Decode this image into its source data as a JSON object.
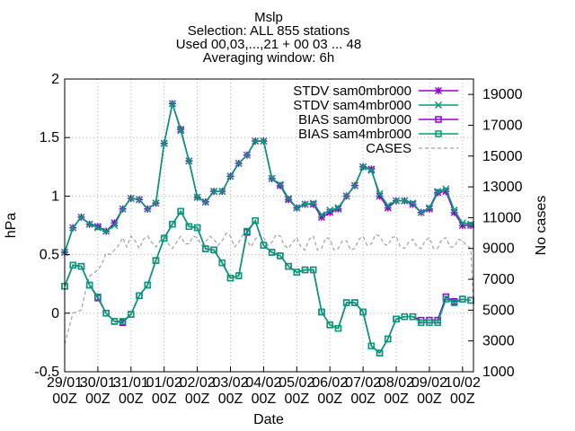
{
  "chart_data": {
    "type": "line",
    "title_lines": [
      "Mslp",
      "Selection: ALL    855 stations",
      "Used 00,03,...,21 + 00 03 ... 48",
      "Averaging window:  6h"
    ],
    "xlabel": "Date",
    "ylabel": "hPa",
    "y2label": "No cases",
    "ylim": [
      -0.5,
      2
    ],
    "y2lim": [
      1000,
      20000
    ],
    "xlim": [
      0,
      12.33
    ],
    "yticks": [
      "-0.5",
      "0",
      "0.5",
      "1",
      "1.5",
      "2"
    ],
    "y2ticks": [
      "1000",
      "3000",
      "5000",
      "7000",
      "9000",
      "11000",
      "13000",
      "15000",
      "17000",
      "19000"
    ],
    "x_ticks": [
      {
        "day": "29/01",
        "hour": "00Z"
      },
      {
        "day": "30/01",
        "hour": "00Z"
      },
      {
        "day": "31/01",
        "hour": "00Z"
      },
      {
        "day": "01/02",
        "hour": "00Z"
      },
      {
        "day": "02/02",
        "hour": "00Z"
      },
      {
        "day": "03/02",
        "hour": "00Z"
      },
      {
        "day": "04/02",
        "hour": "00Z"
      },
      {
        "day": "05/02",
        "hour": "00Z"
      },
      {
        "day": "06/02",
        "hour": "00Z"
      },
      {
        "day": "07/02",
        "hour": "00Z"
      },
      {
        "day": "08/02",
        "hour": "00Z"
      },
      {
        "day": "09/02",
        "hour": "00Z"
      },
      {
        "day": "10/02",
        "hour": "00Z"
      }
    ],
    "x_unit_note": "days",
    "series": [
      {
        "name": "STDV sam0mbr000",
        "axis": "y",
        "marker": "star",
        "color": "#9400d3",
        "x": [
          0,
          0.25,
          0.5,
          0.75,
          1,
          1.25,
          1.5,
          1.75,
          2,
          2.25,
          2.5,
          2.75,
          3,
          3.25,
          3.5,
          3.75,
          4,
          4.25,
          4.5,
          4.75,
          5,
          5.25,
          5.5,
          5.75,
          6,
          6.25,
          6.5,
          6.75,
          7,
          7.25,
          7.5,
          7.75,
          8,
          8.25,
          8.5,
          8.75,
          9,
          9.25,
          9.5,
          9.75,
          10,
          10.25,
          10.5,
          10.75,
          11,
          11.25,
          11.5,
          11.75,
          12,
          12.25
        ],
        "values": [
          0.52,
          0.73,
          0.82,
          0.76,
          0.74,
          0.7,
          0.77,
          0.89,
          0.98,
          0.97,
          0.89,
          0.94,
          1.45,
          1.79,
          1.57,
          1.3,
          0.99,
          0.95,
          1.04,
          1.04,
          1.17,
          1.28,
          1.35,
          1.47,
          1.47,
          1.15,
          1.09,
          0.97,
          0.9,
          0.93,
          0.93,
          0.82,
          0.86,
          0.89,
          1.0,
          1.09,
          1.25,
          1.23,
          1.0,
          0.9,
          0.96,
          0.96,
          0.93,
          0.86,
          0.89,
          1.03,
          1.04,
          0.86,
          0.75,
          0.75
        ]
      },
      {
        "name": "STDV sam4mbr000",
        "axis": "y",
        "marker": "x",
        "color": "#009e73",
        "x": [
          0,
          0.25,
          0.5,
          0.75,
          1,
          1.25,
          1.5,
          1.75,
          2,
          2.25,
          2.5,
          2.75,
          3,
          3.25,
          3.5,
          3.75,
          4,
          4.25,
          4.5,
          4.75,
          5,
          5.25,
          5.5,
          5.75,
          6,
          6.25,
          6.5,
          6.75,
          7,
          7.25,
          7.5,
          7.75,
          8,
          8.25,
          8.5,
          8.75,
          9,
          9.25,
          9.5,
          9.75,
          10,
          10.25,
          10.5,
          10.75,
          11,
          11.25,
          11.5,
          11.75,
          12,
          12.25
        ],
        "values": [
          0.52,
          0.73,
          0.82,
          0.76,
          0.73,
          0.7,
          0.75,
          0.89,
          0.98,
          0.97,
          0.89,
          0.94,
          1.45,
          1.79,
          1.56,
          1.3,
          0.99,
          0.95,
          1.04,
          1.04,
          1.17,
          1.28,
          1.35,
          1.47,
          1.47,
          1.15,
          1.1,
          0.98,
          0.9,
          0.93,
          0.94,
          0.84,
          0.88,
          0.9,
          1.0,
          1.09,
          1.25,
          1.22,
          1.02,
          0.92,
          0.96,
          0.96,
          0.94,
          0.86,
          0.9,
          1.04,
          1.06,
          0.88,
          0.77,
          0.76
        ]
      },
      {
        "name": "BIAS sam0mbr000",
        "axis": "y",
        "marker": "square",
        "color": "#9400d3",
        "x": [
          0,
          0.25,
          0.5,
          0.75,
          1,
          1.25,
          1.5,
          1.75,
          2,
          2.25,
          2.5,
          2.75,
          3,
          3.25,
          3.5,
          3.75,
          4,
          4.25,
          4.5,
          4.75,
          5,
          5.25,
          5.5,
          5.75,
          6,
          6.25,
          6.5,
          6.75,
          7,
          7.25,
          7.5,
          7.75,
          8,
          8.25,
          8.5,
          8.75,
          9,
          9.25,
          9.5,
          9.75,
          10,
          10.25,
          10.5,
          10.75,
          11,
          11.25,
          11.5,
          11.75,
          12,
          12.25
        ],
        "values": [
          0.23,
          0.41,
          0.4,
          0.24,
          0.13,
          0.0,
          -0.07,
          -0.08,
          -0.01,
          0.15,
          0.24,
          0.45,
          0.64,
          0.76,
          0.87,
          0.74,
          0.73,
          0.55,
          0.54,
          0.43,
          0.3,
          0.32,
          0.69,
          0.79,
          0.58,
          0.52,
          0.49,
          0.4,
          0.35,
          0.37,
          0.37,
          0.01,
          -0.1,
          -0.13,
          0.09,
          0.09,
          0.01,
          -0.28,
          -0.34,
          -0.22,
          -0.05,
          -0.03,
          -0.03,
          -0.06,
          -0.06,
          -0.06,
          0.14,
          0.1,
          0.12,
          0.11
        ]
      },
      {
        "name": "BIAS sam4mbr000",
        "axis": "y",
        "marker": "square",
        "color": "#009e73",
        "x": [
          0,
          0.25,
          0.5,
          0.75,
          1,
          1.25,
          1.5,
          1.75,
          2,
          2.25,
          2.5,
          2.75,
          3,
          3.25,
          3.5,
          3.75,
          4,
          4.25,
          4.5,
          4.75,
          5,
          5.25,
          5.5,
          5.75,
          6,
          6.25,
          6.5,
          6.75,
          7,
          7.25,
          7.5,
          7.75,
          8,
          8.25,
          8.5,
          8.75,
          9,
          9.25,
          9.5,
          9.75,
          10,
          10.25,
          10.5,
          10.75,
          11,
          11.25,
          11.5,
          11.75,
          12,
          12.25
        ],
        "values": [
          0.23,
          0.41,
          0.4,
          0.24,
          0.14,
          0.0,
          -0.07,
          -0.07,
          -0.01,
          0.15,
          0.24,
          0.45,
          0.64,
          0.76,
          0.87,
          0.74,
          0.73,
          0.55,
          0.54,
          0.43,
          0.3,
          0.32,
          0.7,
          0.79,
          0.58,
          0.52,
          0.49,
          0.4,
          0.35,
          0.37,
          0.37,
          0.01,
          -0.1,
          -0.13,
          0.09,
          0.09,
          0.01,
          -0.28,
          -0.34,
          -0.22,
          -0.05,
          -0.03,
          -0.03,
          -0.08,
          -0.08,
          -0.08,
          0.12,
          0.09,
          0.12,
          0.11
        ]
      },
      {
        "name": "CASES",
        "axis": "y2",
        "marker": "none",
        "dashed": true,
        "color": "#a0a0a0",
        "x": [
          0,
          0.125,
          0.25,
          0.375,
          0.5,
          0.625,
          0.75,
          0.875,
          1,
          1.125,
          1.25,
          1.375,
          1.5,
          1.625,
          1.75,
          1.875,
          2,
          2.125,
          2.25,
          2.375,
          2.5,
          2.625,
          2.75,
          2.875,
          3,
          3.125,
          3.25,
          3.375,
          3.5,
          3.625,
          3.75,
          3.875,
          4,
          4.125,
          4.25,
          4.375,
          4.5,
          4.625,
          4.75,
          4.875,
          5,
          5.125,
          5.25,
          5.375,
          5.5,
          5.625,
          5.75,
          5.875,
          6,
          6.125,
          6.25,
          6.375,
          6.5,
          6.625,
          6.75,
          6.875,
          7,
          7.125,
          7.25,
          7.375,
          7.5,
          7.625,
          7.75,
          7.875,
          8,
          8.125,
          8.25,
          8.375,
          8.5,
          8.625,
          8.75,
          8.875,
          9,
          9.125,
          9.25,
          9.375,
          9.5,
          9.625,
          9.75,
          9.875,
          10,
          10.125,
          10.25,
          10.375,
          10.5,
          10.625,
          10.75,
          10.875,
          11,
          11.125,
          11.25,
          11.375,
          11.5,
          11.625,
          11.75,
          11.875,
          12,
          12.125,
          12.25,
          12.333
        ],
        "values": [
          2800,
          3800,
          4800,
          4900,
          5000,
          6200,
          7200,
          7400,
          7600,
          8000,
          8700,
          8600,
          8900,
          9200,
          9700,
          9100,
          9800,
          9500,
          9000,
          9600,
          9800,
          9400,
          9100,
          9500,
          9900,
          9300,
          9000,
          9400,
          9800,
          9300,
          9300,
          9800,
          9700,
          9200,
          9400,
          9800,
          9600,
          9200,
          9500,
          10000,
          9800,
          9100,
          9400,
          9900,
          9500,
          9100,
          9600,
          9900,
          9700,
          9200,
          9400,
          9900,
          9800,
          9200,
          9000,
          9400,
          9700,
          9100,
          8900,
          9600,
          9800,
          8900,
          9000,
          9700,
          9600,
          8900,
          9000,
          9500,
          9500,
          8900,
          9000,
          9600,
          9800,
          9200,
          9300,
          9900,
          9800,
          9300,
          9200,
          9700,
          9800,
          9100,
          9000,
          9400,
          9600,
          9100,
          9000,
          9500,
          9700,
          9000,
          9000,
          9600,
          9700,
          9100,
          9100,
          9600,
          9500,
          9200,
          9000,
          5200
        ]
      }
    ]
  }
}
